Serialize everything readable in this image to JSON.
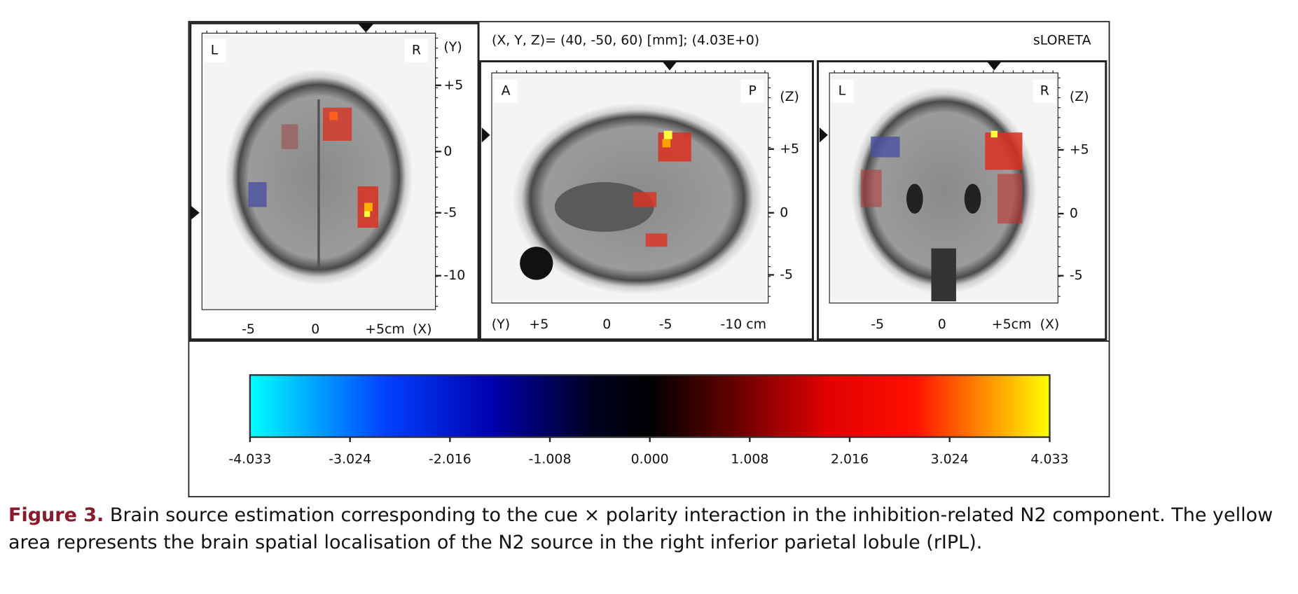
{
  "header": {
    "coordinates": "(X, Y, Z)= (40, -50, 60) [mm]; (4.03E+0)",
    "method": "sLORETA"
  },
  "panels": [
    {
      "corner_labels": [
        "L",
        "R"
      ],
      "x_axis_labels": [
        "-5",
        "0",
        "+5cm",
        "(X)"
      ],
      "y_axis_labels": [
        "(Y)",
        "+5",
        "0",
        "-5",
        "-10"
      ]
    },
    {
      "corner_labels": [
        "A",
        "P"
      ],
      "x_axis_labels": [
        "(Y)",
        "+5",
        "0",
        "-5",
        "-10 cm"
      ],
      "y_axis_labels": [
        "(Z)",
        "+5",
        "0",
        "-5"
      ]
    },
    {
      "corner_labels": [
        "L",
        "R"
      ],
      "x_axis_labels": [
        "-5",
        "0",
        "+5cm",
        "(X)"
      ],
      "y_axis_labels": [
        "(Z)",
        "+5",
        "0",
        "-5"
      ]
    }
  ],
  "colorbar": {
    "lim": [
      -4.033,
      4.033
    ],
    "ticks": [
      -4.033,
      -3.024,
      -2.016,
      -1.008,
      {
        "value": 0,
        "label": "0.000"
      },
      1.008,
      2.016,
      3.024,
      4.033
    ]
  },
  "caption": {
    "label": "Figure 3.",
    "text": "Brain source estimation corresponding to the cue × polarity interaction in the inhibition-related N2 component. The yellow area represents the brain spatial localisation of the N2 source in the right inferior parietal lobule (rIPL)."
  }
}
